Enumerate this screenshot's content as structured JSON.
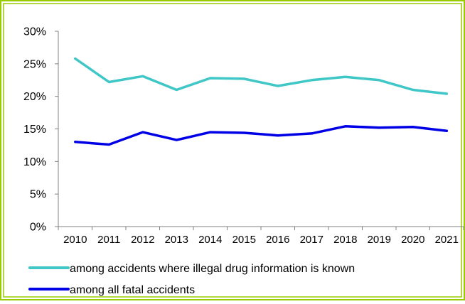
{
  "chart_data": {
    "type": "line",
    "x": [
      "2010",
      "2011",
      "2012",
      "2013",
      "2014",
      "2015",
      "2016",
      "2017",
      "2018",
      "2019",
      "2020",
      "2021"
    ],
    "ylim": [
      0,
      30
    ],
    "yticks": [
      "0%",
      "5%",
      "10%",
      "15%",
      "20%",
      "25%",
      "30%"
    ],
    "ytick_values": [
      0,
      5,
      10,
      15,
      20,
      25,
      30
    ],
    "grid": false,
    "legend_position": "bottom",
    "series": [
      {
        "name": "among accidents where illegal drug information is known",
        "color": "#3fc6c6",
        "values": [
          25.8,
          22.2,
          23.1,
          21.0,
          22.8,
          22.7,
          21.6,
          22.5,
          23.0,
          22.5,
          21.0,
          20.4
        ]
      },
      {
        "name": "among all fatal accidents",
        "color": "#0000e6",
        "values": [
          13.0,
          12.6,
          14.5,
          13.3,
          14.5,
          14.4,
          14.0,
          14.3,
          15.4,
          15.2,
          15.3,
          14.7
        ]
      }
    ],
    "frame_color": "#99cc00"
  }
}
